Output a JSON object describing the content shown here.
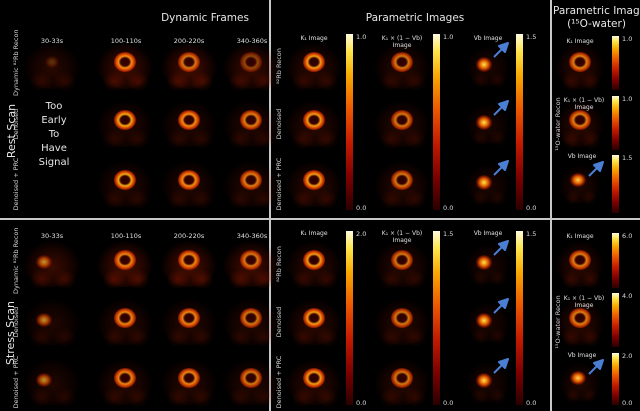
{
  "headers": {
    "dynamic": "Dynamic Frames",
    "parametric": "Parametric Images",
    "water_line1": "Parametric Images",
    "water_line2": "(¹⁵O-water)"
  },
  "scans": {
    "rest": "Rest Scan",
    "stress": "Stress Scan"
  },
  "time_labels": [
    "30-33s",
    "100-110s",
    "200-220s",
    "340-360s"
  ],
  "row_labels": {
    "dynamic_rb": "Dynamic ⁸²Rb Recon",
    "denoised": "Denoised",
    "denoised_prc": "Denoised + PRC",
    "rb_recon": "⁸²Rb Recon",
    "water_recon": "¹⁵O-water Recon"
  },
  "early_text": [
    "Too",
    "Early",
    "To",
    "Have",
    "Signal"
  ],
  "image_titles": {
    "k1": "K₁ Image",
    "k1vb_line1": "K₁ × (1 − Vb)",
    "k1vb_line2": "Image",
    "vb": "Vb Image"
  },
  "colorbars": {
    "rest_k1": {
      "max": "1.0",
      "min": "0.0"
    },
    "rest_k1vb": {
      "max": "1.0",
      "min": "0.0"
    },
    "rest_vb": {
      "max": "1.5",
      "min": "0.0"
    },
    "water_rest_k1": {
      "max": "1.0"
    },
    "water_rest_k1vb": {
      "max": "1.0"
    },
    "water_rest_vb": {
      "max": "1.5"
    },
    "stress_k1": {
      "max": "2.0",
      "min": "0.0"
    },
    "stress_k1vb": {
      "max": "1.5",
      "min": "0.0"
    },
    "stress_vb": {
      "max": "1.5",
      "min": "0.0"
    },
    "water_stress_k1": {
      "max": "6.0"
    },
    "water_stress_k1vb": {
      "max": "4.0"
    },
    "water_stress_vb": {
      "max": "2.0",
      "min": "0.0"
    }
  },
  "colors": {
    "arrow": "#4a7fd4",
    "separator": "#c8c8c8"
  }
}
